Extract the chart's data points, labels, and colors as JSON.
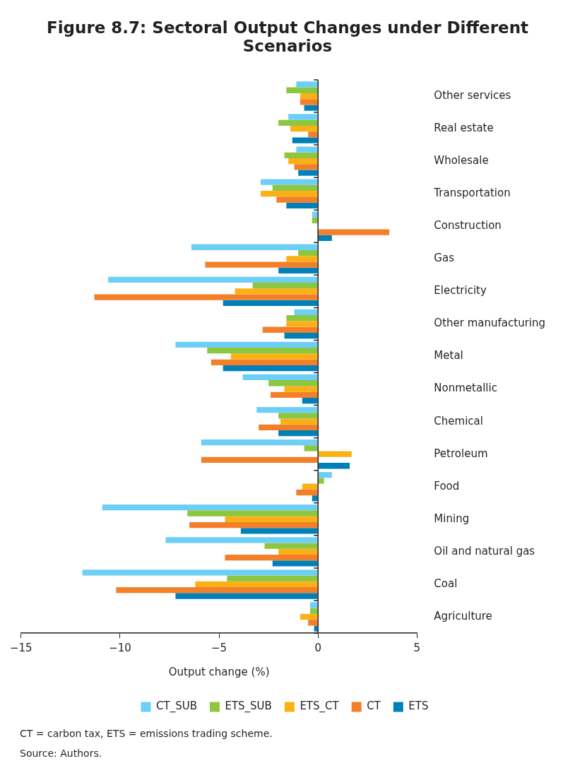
{
  "chart_data": {
    "type": "bar",
    "orientation": "horizontal",
    "title": "Figure 8.7: Sectoral Output Changes under Different Scenarios",
    "xlabel": "Output change (%)",
    "categories": [
      "Other services",
      "Real estate",
      "Wholesale",
      "Transportation",
      "Construction",
      "Gas",
      "Electricity",
      "Other manufacturing",
      "Metal",
      "Nonmetallic",
      "Chemical",
      "Petroleum",
      "Food",
      "Mining",
      "Oil and natural gas",
      "Coal",
      "Agriculture"
    ],
    "series": [
      {
        "name": "CT_SUB",
        "color": "#6dcff6",
        "values": [
          -1.1,
          -1.5,
          -1.1,
          -2.9,
          -0.3,
          -6.4,
          -10.6,
          -1.2,
          -7.2,
          -3.8,
          -3.1,
          -5.9,
          0.7,
          -10.9,
          -7.7,
          -11.9,
          -0.4
        ]
      },
      {
        "name": "ETS_SUB",
        "color": "#8dc63f",
        "values": [
          -1.6,
          -2.0,
          -1.7,
          -2.3,
          -0.3,
          -1.0,
          -3.3,
          -1.6,
          -5.6,
          -2.5,
          -2.0,
          -0.7,
          0.3,
          -6.6,
          -2.7,
          -4.6,
          -0.4
        ]
      },
      {
        "name": "ETS_CT",
        "color": "#fbb116",
        "values": [
          -0.9,
          -1.4,
          -1.5,
          -2.9,
          0,
          -1.6,
          -4.2,
          -1.6,
          -4.4,
          -1.7,
          -1.9,
          1.7,
          -0.8,
          -4.7,
          -2.0,
          -6.2,
          -0.9
        ]
      },
      {
        "name": "CT",
        "color": "#f37f29",
        "values": [
          -0.9,
          -0.5,
          -1.2,
          -2.1,
          3.6,
          -5.7,
          -11.3,
          -2.8,
          -5.4,
          -2.4,
          -3.0,
          -5.9,
          -1.1,
          -6.5,
          -4.7,
          -10.2,
          -0.5
        ]
      },
      {
        "name": "ETS",
        "color": "#0080b8",
        "values": [
          -0.7,
          -1.3,
          -1.0,
          -1.6,
          0.7,
          -2.0,
          -4.8,
          -1.7,
          -4.8,
          -0.8,
          -2.0,
          1.6,
          -0.3,
          -3.9,
          -2.3,
          -7.2,
          -0.2
        ]
      }
    ],
    "xlim": [
      -15,
      5
    ],
    "xticks": [
      {
        "value": -15,
        "label": "−15"
      },
      {
        "value": -10,
        "label": "−10"
      },
      {
        "value": -5,
        "label": "−5"
      },
      0,
      5
    ],
    "legend": "bottom",
    "annotations": [
      "CT = carbon tax, ETS = emissions trading scheme.",
      "Source: Authors."
    ]
  }
}
